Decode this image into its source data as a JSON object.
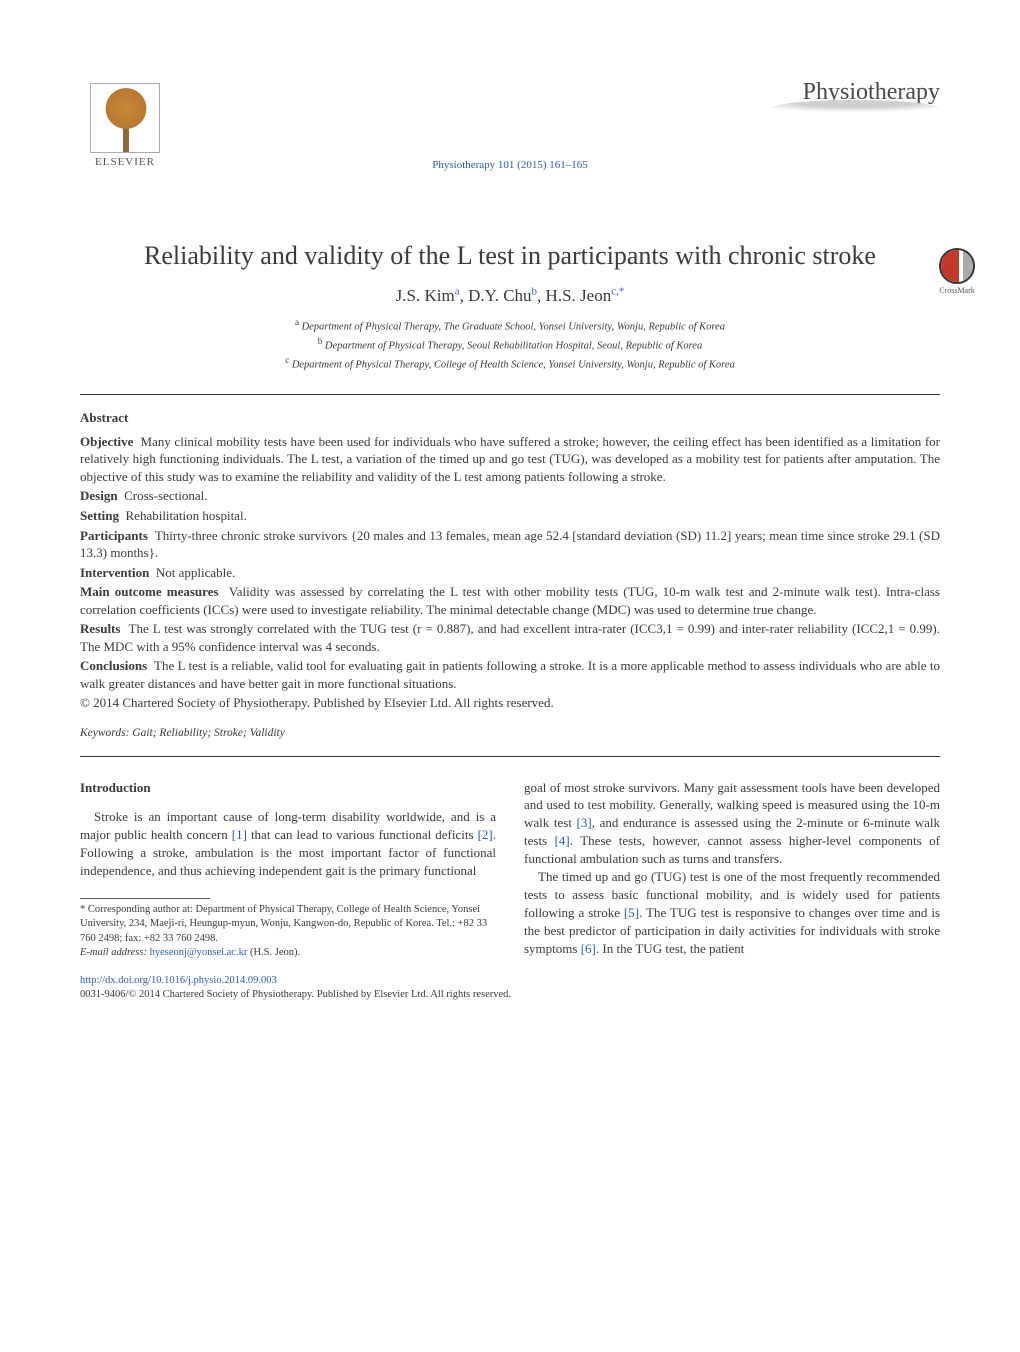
{
  "header": {
    "publisher_name": "ELSEVIER",
    "journal_ref_link": "Physiotherapy 101 (2015) 161–165",
    "journal_logo_text": "Physiotherapy"
  },
  "article": {
    "title": "Reliability and validity of the L test in participants with chronic stroke",
    "crossmark_label": "CrossMark",
    "authors_html": "J.S. Kim|a|, D.Y. Chu|b|, H.S. Jeon|c,*",
    "authors": [
      {
        "name": "J.S. Kim",
        "sup": "a"
      },
      {
        "name": "D.Y. Chu",
        "sup": "b"
      },
      {
        "name": "H.S. Jeon",
        "sup": "c,*"
      }
    ],
    "affiliations": [
      {
        "sup": "a",
        "text": "Department of Physical Therapy, The Graduate School, Yonsei University, Wonju, Republic of Korea"
      },
      {
        "sup": "b",
        "text": "Department of Physical Therapy, Seoul Rehabilitation Hospital, Seoul, Republic of Korea"
      },
      {
        "sup": "c",
        "text": "Department of Physical Therapy, College of Health Science, Yonsei University, Wonju, Republic of Korea"
      }
    ]
  },
  "abstract": {
    "heading": "Abstract",
    "sections": [
      {
        "lead": "Objective",
        "text": "Many clinical mobility tests have been used for individuals who have suffered a stroke; however, the ceiling effect has been identified as a limitation for relatively high functioning individuals. The L test, a variation of the timed up and go test (TUG), was developed as a mobility test for patients after amputation. The objective of this study was to examine the reliability and validity of the L test among patients following a stroke."
      },
      {
        "lead": "Design",
        "text": "Cross-sectional."
      },
      {
        "lead": "Setting",
        "text": "Rehabilitation hospital."
      },
      {
        "lead": "Participants",
        "text": "Thirty-three chronic stroke survivors {20 males and 13 females, mean age 52.4 [standard deviation (SD) 11.2] years; mean time since stroke 29.1 (SD 13.3) months}."
      },
      {
        "lead": "Intervention",
        "text": "Not applicable."
      },
      {
        "lead": "Main outcome measures",
        "text": "Validity was assessed by correlating the L test with other mobility tests (TUG, 10-m walk test and 2-minute walk test). Intra-class correlation coefficients (ICCs) were used to investigate reliability. The minimal detectable change (MDC) was used to determine true change."
      },
      {
        "lead": "Results",
        "text": "The L test was strongly correlated with the TUG test (r = 0.887), and had excellent intra-rater (ICC3,1 = 0.99) and inter-rater reliability (ICC2,1 = 0.99). The MDC with a 95% confidence interval was 4 seconds."
      },
      {
        "lead": "Conclusions",
        "text": "The L test is a reliable, valid tool for evaluating gait in patients following a stroke. It is a more applicable method to assess individuals who are able to walk greater distances and have better gait in more functional situations."
      }
    ],
    "copyright": "© 2014 Chartered Society of Physiotherapy. Published by Elsevier Ltd. All rights reserved.",
    "keywords_label": "Keywords:",
    "keywords": "Gait; Reliability; Stroke; Validity"
  },
  "body": {
    "intro_heading": "Introduction",
    "col1": {
      "p1_a": "Stroke is an important cause of long-term disability worldwide, and is a major public health concern ",
      "p1_ref1": "[1]",
      "p1_b": " that can lead to various functional deficits ",
      "p1_ref2": "[2]",
      "p1_c": ". Following a stroke, ambulation is the most important factor of functional independence, and thus achieving independent gait is the primary functional"
    },
    "col2": {
      "p1_a": "goal of most stroke survivors. Many gait assessment tools have been developed and used to test mobility. Generally, walking speed is measured using the 10-m walk test ",
      "p1_ref3": "[3]",
      "p1_b": ", and endurance is assessed using the 2-minute or 6-minute walk tests ",
      "p1_ref4": "[4]",
      "p1_c": ". These tests, however, cannot assess higher-level components of functional ambulation such as turns and transfers.",
      "p2_a": "The timed up and go (TUG) test is one of the most frequently recommended tests to assess basic functional mobility, and is widely used for patients following a stroke ",
      "p2_ref5": "[5]",
      "p2_b": ". The TUG test is responsive to changes over time and is the best predictor of participation in daily activities for individuals with stroke symptoms ",
      "p2_ref6": "[6]",
      "p2_c": ". In the TUG test, the patient"
    }
  },
  "footnote": {
    "corr_marker": "*",
    "corr_text": "Corresponding author at: Department of Physical Therapy, College of Health Science, Yonsei University, 234, Maeji-ri, Heungup-myun, Wonju, Kangwon-do, Republic of Korea. Tel.: +82 33 760 2498; fax: +82 33 760 2498.",
    "email_label": "E-mail address:",
    "email": "hyeseonj@yonsei.ac.kr",
    "email_name": "(H.S. Jeon)."
  },
  "footer": {
    "doi": "http://dx.doi.org/10.1016/j.physio.2014.09.003",
    "issn_line": "0031-9406/© 2014 Chartered Society of Physiotherapy. Published by Elsevier Ltd. All rights reserved."
  },
  "colors": {
    "link": "#2a5db0",
    "text": "#3a3a3a",
    "rule": "#333333"
  },
  "typography": {
    "body_pt": 13,
    "title_pt": 26,
    "authors_pt": 17,
    "affil_pt": 10.5,
    "footnote_pt": 10.5
  }
}
